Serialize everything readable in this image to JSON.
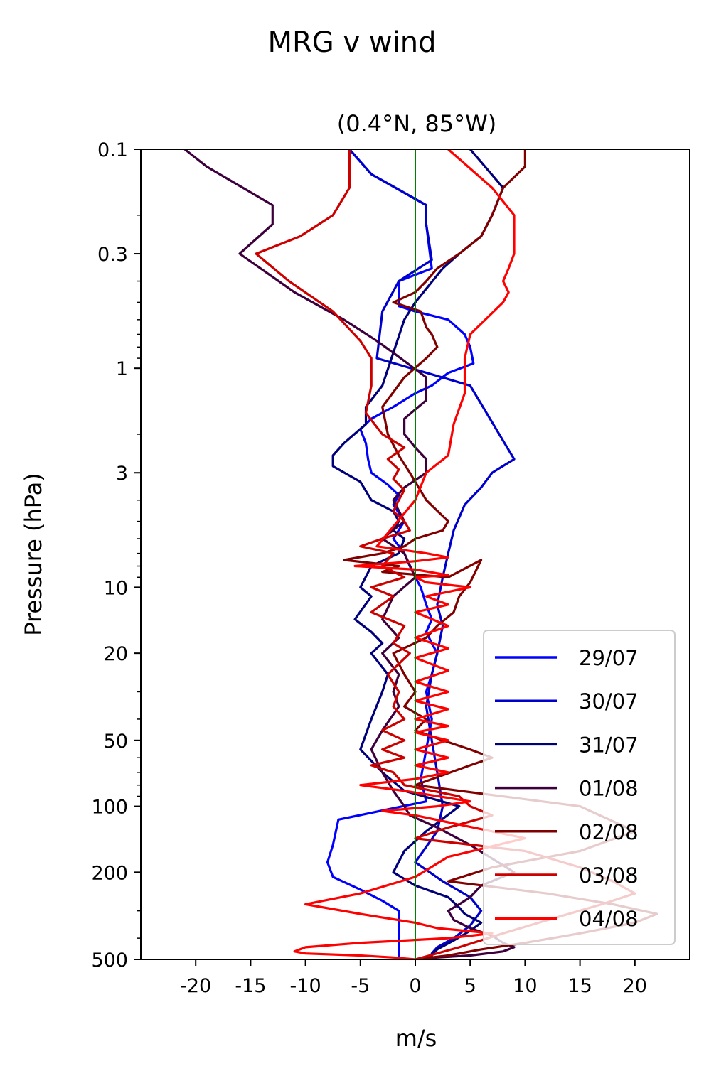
{
  "chart_data": {
    "type": "line",
    "title": "MRG v wind",
    "subtitle": "(0.4°N, 85°W)",
    "xlabel": "m/s",
    "ylabel": "Pressure (hPa)",
    "xlim": [
      -25,
      25
    ],
    "ylim": [
      500,
      0.1
    ],
    "yscale": "log",
    "y_inverted": true,
    "xticks": [
      -20,
      -15,
      -10,
      -5,
      0,
      5,
      10,
      15,
      20
    ],
    "xtick_labels": [
      "-20",
      "-15",
      "-10",
      "-5",
      "0",
      "5",
      "10",
      "15",
      "20"
    ],
    "yticks": [
      0.1,
      0.3,
      1,
      3,
      10,
      20,
      50,
      100,
      200,
      500
    ],
    "ytick_labels": [
      "0.1",
      "0.3",
      "1",
      "3",
      "10",
      "20",
      "50",
      "100",
      "200",
      "500"
    ],
    "grid": false,
    "legend_position": "lower-right",
    "reference_line": {
      "x": 0,
      "color": "#008000"
    },
    "series": [
      {
        "name": "29/07",
        "color": "#0000ff",
        "x": [
          -6,
          -4,
          1,
          1,
          1.5,
          -1.5,
          -1.5,
          0,
          3,
          4.5,
          5,
          5.3,
          3,
          1.5,
          0,
          -2,
          -4,
          -5,
          -4.5,
          -4.3,
          -4,
          -2.5,
          -1.5,
          -2,
          -1,
          -2,
          -1,
          -0.5,
          0,
          0.5,
          1,
          1.5,
          1,
          1.5,
          2,
          1.5,
          1,
          1.5,
          1,
          0.5,
          1,
          -7,
          -7.5,
          -8,
          -7.5,
          -5,
          -3,
          -1.5,
          -1.5,
          -1.5,
          -1.5
        ],
        "y": [
          0.1,
          0.13,
          0.18,
          0.22,
          0.35,
          0.4,
          0.52,
          0.55,
          0.6,
          0.7,
          0.8,
          0.95,
          1.05,
          1.2,
          1.3,
          1.5,
          1.7,
          1.9,
          2.2,
          2.6,
          3.0,
          3.4,
          3.8,
          4.2,
          5,
          6,
          7,
          8,
          9,
          10,
          12,
          14,
          16,
          18,
          20,
          25,
          30,
          40,
          55,
          75,
          95,
          115,
          150,
          180,
          210,
          240,
          270,
          300,
          350,
          420,
          500
        ]
      },
      {
        "name": "30/07",
        "color": "#0000cd",
        "x": [
          -6,
          -4,
          1,
          1,
          1.5,
          -1.5,
          -3,
          -3.5,
          5,
          9,
          7,
          6,
          4.5,
          3.5,
          3,
          2.5,
          2,
          2.5,
          2,
          1.5,
          1,
          1.5,
          2,
          2.5,
          2,
          0,
          2.5,
          5,
          6,
          5,
          3.5,
          2,
          1.5,
          1.5
        ],
        "y": [
          0.1,
          0.13,
          0.18,
          0.22,
          0.32,
          0.4,
          0.55,
          0.9,
          1.2,
          2.6,
          3.0,
          3.5,
          4.2,
          5.5,
          7,
          9,
          12,
          15,
          20,
          25,
          35,
          50,
          70,
          100,
          130,
          180,
          220,
          260,
          300,
          350,
          400,
          440,
          470,
          500
        ]
      },
      {
        "name": "31/07",
        "color": "#00007a",
        "x": [
          5,
          8,
          7,
          6,
          4,
          2.5,
          0,
          -1,
          -3,
          -4.5,
          -4.5,
          -6.5,
          -7.5,
          -7.5,
          -5,
          -4,
          -2,
          -1.5,
          -2,
          -1,
          -1.5,
          -4,
          -5,
          -4,
          -5.5,
          -4,
          -3,
          -4,
          -2.5,
          -3,
          -4,
          -5,
          -3,
          -1,
          4,
          1,
          -1,
          -2,
          0,
          3,
          4,
          4.5,
          6,
          5,
          3.5,
          2,
          1
        ],
        "y": [
          0.1,
          0.15,
          0.2,
          0.25,
          0.3,
          0.35,
          0.5,
          0.6,
          1.2,
          1.5,
          1.8,
          2.2,
          2.5,
          2.8,
          3.3,
          4.0,
          4.5,
          5,
          5.5,
          6,
          7,
          8,
          10,
          11,
          14,
          16,
          18,
          20,
          25,
          30,
          40,
          55,
          70,
          85,
          100,
          130,
          160,
          200,
          230,
          260,
          290,
          310,
          340,
          370,
          410,
          450,
          500
        ]
      },
      {
        "name": "01/08",
        "color": "#3d003d",
        "x": [
          -21,
          -19,
          -13,
          -13,
          -16,
          -11,
          -6.5,
          -3.5,
          -2,
          1,
          1,
          -1,
          -1,
          0,
          1,
          1,
          -1,
          -2,
          -1,
          -3,
          -1,
          0,
          -2,
          -3,
          -1.5,
          -3,
          -1.5,
          -2,
          -1.5,
          -3,
          -4,
          -3,
          -2,
          -1,
          -0.5,
          2,
          5,
          9,
          6,
          5,
          4,
          3,
          3.5,
          5,
          7,
          8,
          9,
          8,
          5,
          2,
          0
        ],
        "y": [
          0.1,
          0.12,
          0.18,
          0.22,
          0.3,
          0.45,
          0.6,
          0.75,
          0.85,
          1.1,
          1.4,
          1.7,
          2.0,
          2.3,
          2.6,
          3.0,
          3.5,
          4,
          5,
          6,
          7,
          9,
          11,
          14,
          17,
          20,
          25,
          30,
          35,
          45,
          55,
          70,
          85,
          100,
          110,
          125,
          150,
          200,
          230,
          260,
          280,
          300,
          330,
          360,
          390,
          420,
          440,
          460,
          480,
          490,
          500
        ]
      },
      {
        "name": "02/08",
        "color": "#800000",
        "x": [
          10,
          10,
          8,
          7,
          6,
          4,
          2,
          1,
          0,
          -2,
          0.5,
          1,
          1.5,
          2,
          1,
          -1,
          -3,
          -2.5,
          -1.5,
          -0.5,
          1,
          3,
          2.5,
          0,
          -1,
          -3,
          -6.5,
          -1.5,
          -3,
          3,
          6,
          5,
          4,
          3.5,
          2,
          1,
          -2,
          -1,
          0,
          -1,
          1,
          0,
          2.5,
          5,
          7,
          5,
          0,
          15,
          20,
          15,
          7,
          3,
          12,
          18,
          22,
          20,
          15,
          10,
          6,
          3,
          0
        ],
        "y": [
          0.1,
          0.12,
          0.15,
          0.2,
          0.25,
          0.3,
          0.35,
          0.4,
          0.45,
          0.5,
          0.55,
          0.65,
          0.7,
          0.8,
          0.9,
          1.1,
          1.5,
          2.0,
          2.5,
          3.0,
          4.0,
          5.0,
          5.5,
          6.0,
          6.5,
          7.0,
          7.5,
          8.0,
          8.5,
          9.0,
          7.5,
          9.5,
          11,
          13,
          15,
          17,
          20,
          25,
          30,
          35,
          40,
          45,
          50,
          55,
          60,
          65,
          80,
          100,
          130,
          160,
          190,
          220,
          250,
          280,
          310,
          340,
          380,
          420,
          450,
          480,
          500
        ]
      },
      {
        "name": "03/08",
        "color": "#cd0000",
        "x": [
          -6,
          -6,
          -7.5,
          -10.5,
          -14.5,
          -11.5,
          -7.5,
          -5,
          -4,
          -4,
          -4.5,
          -3,
          -1,
          -2.5,
          -1.5,
          -2,
          -1,
          -1.5,
          -2,
          -1,
          -0.5,
          -3,
          -5,
          -2,
          -3,
          -1,
          -4,
          -2,
          -4,
          -1,
          -2,
          -0.5,
          -2.5,
          -1.5,
          -2,
          -1,
          -3,
          -1,
          -3,
          -1,
          -4,
          -2,
          -1,
          4,
          5,
          7,
          3,
          0,
          10,
          15,
          18,
          20,
          17,
          13,
          8,
          4,
          0
        ],
        "y": [
          0.1,
          0.15,
          0.2,
          0.25,
          0.3,
          0.4,
          0.55,
          0.75,
          0.9,
          1.2,
          1.6,
          2.0,
          2.3,
          2.6,
          2.9,
          3.2,
          3.6,
          4.0,
          4.5,
          5.0,
          5.5,
          6.0,
          6.5,
          7.0,
          8.0,
          9.0,
          10,
          11,
          13,
          15,
          18,
          20,
          25,
          30,
          35,
          40,
          45,
          50,
          55,
          60,
          65,
          70,
          80,
          90,
          100,
          110,
          125,
          140,
          160,
          190,
          220,
          250,
          280,
          320,
          380,
          440,
          500
        ]
      },
      {
        "name": "04/08",
        "color": "#ff0000",
        "x": [
          3,
          7,
          9,
          9,
          8.5,
          8,
          8.5,
          8,
          5,
          4.5,
          4.5,
          4.5,
          3.5,
          3,
          1,
          0,
          -3.5,
          1,
          3,
          0,
          -5.5,
          0,
          3,
          0,
          1,
          5,
          1,
          3,
          0,
          3,
          0,
          3,
          0,
          3,
          0,
          3,
          0,
          3,
          0,
          3,
          0,
          3,
          0,
          3,
          0,
          3,
          0,
          -5,
          -1,
          5,
          2,
          -3,
          0,
          10,
          3,
          0,
          -5,
          -10,
          -5,
          0,
          2,
          7,
          3,
          -5,
          -10,
          -11,
          -10,
          -5,
          -2,
          0
        ],
        "y": [
          0.1,
          0.15,
          0.2,
          0.3,
          0.35,
          0.4,
          0.45,
          0.5,
          0.7,
          0.9,
          1.1,
          1.3,
          1.8,
          2.5,
          3.0,
          4.0,
          6.5,
          7.0,
          7.3,
          7.6,
          8.0,
          8.3,
          8.8,
          9.0,
          9.5,
          10,
          11,
          12,
          13,
          15,
          17,
          19,
          21,
          24,
          27,
          30,
          33,
          36,
          40,
          43,
          46,
          50,
          55,
          60,
          65,
          70,
          75,
          80,
          85,
          95,
          100,
          105,
          110,
          140,
          170,
          210,
          250,
          280,
          310,
          340,
          360,
          380,
          400,
          420,
          440,
          460,
          470,
          480,
          490,
          500
        ]
      }
    ]
  }
}
